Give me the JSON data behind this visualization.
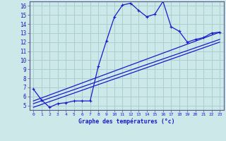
{
  "title": "Graphe des températures (°c)",
  "background_color": "#cce8e8",
  "grid_color": "#aacece",
  "line_color": "#1a1acc",
  "xlim": [
    -0.5,
    23.5
  ],
  "ylim": [
    4.5,
    16.5
  ],
  "xticks": [
    0,
    1,
    2,
    3,
    4,
    5,
    6,
    7,
    8,
    9,
    10,
    11,
    12,
    13,
    14,
    15,
    16,
    17,
    18,
    19,
    20,
    21,
    22,
    23
  ],
  "yticks": [
    5,
    6,
    7,
    8,
    9,
    10,
    11,
    12,
    13,
    14,
    15,
    16
  ],
  "series1_x": [
    0,
    1,
    2,
    3,
    4,
    5,
    6,
    7,
    8,
    9,
    10,
    11,
    12,
    13,
    14,
    15,
    16,
    17,
    18,
    19,
    20,
    21,
    22,
    23
  ],
  "series1_y": [
    6.8,
    5.6,
    4.8,
    5.2,
    5.3,
    5.5,
    5.5,
    5.5,
    9.3,
    12.1,
    14.8,
    16.1,
    16.3,
    15.5,
    14.8,
    15.1,
    16.5,
    13.7,
    13.2,
    12.0,
    12.3,
    12.5,
    13.0,
    13.1
  ],
  "series2_x": [
    0,
    23
  ],
  "series2_y": [
    5.5,
    13.1
  ],
  "series3_x": [
    0,
    23
  ],
  "series3_y": [
    5.2,
    12.3
  ],
  "series4_x": [
    0,
    23
  ],
  "series4_y": [
    4.8,
    12.0
  ]
}
